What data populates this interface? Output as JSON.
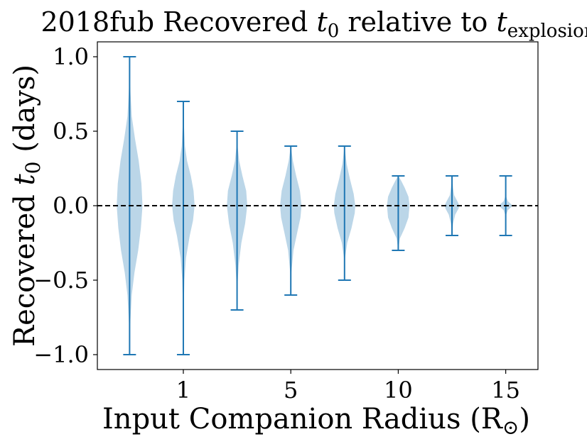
{
  "chart_data": {
    "type": "violin",
    "title": {
      "prefix": "2018fub Recovered ",
      "var": "t",
      "var_sub": "0",
      "middle": " relative to ",
      "var2": "t",
      "var2_sub": "explosion"
    },
    "xlabel": {
      "main": "Input Companion Radius (R",
      "sub": "⊙",
      "close": ")"
    },
    "ylabel": {
      "prefix": "Recovered ",
      "var": "t",
      "var_sub": "0",
      "suffix": "  (days)"
    },
    "ylim": [
      -1.1,
      1.1
    ],
    "yticks": [
      {
        "value": 1.0,
        "label": "1.0"
      },
      {
        "value": 0.5,
        "label": "0.5"
      },
      {
        "value": 0.0,
        "label": "0.0"
      },
      {
        "value": -0.5,
        "label": "−0.5"
      },
      {
        "value": -1.0,
        "label": "−1.0"
      }
    ],
    "xlim": [
      0.4,
      8.6
    ],
    "xticks": [
      {
        "pos": 2,
        "label": "1"
      },
      {
        "pos": 4,
        "label": "5"
      },
      {
        "pos": 6,
        "label": "10"
      },
      {
        "pos": 8,
        "label": "15"
      }
    ],
    "reference_line": {
      "y": 0.0,
      "style": "dashed",
      "color": "#000000"
    },
    "colors": {
      "body": "#1f77b4",
      "body_alpha": 0.3,
      "lines": "#1f77b4"
    },
    "violins": [
      {
        "pos": 1,
        "min": -1.0,
        "max": 1.0,
        "profile": [
          [
            -1.0,
            0.0
          ],
          [
            -0.8,
            0.01
          ],
          [
            -0.6,
            0.04
          ],
          [
            -0.45,
            0.09
          ],
          [
            -0.3,
            0.16
          ],
          [
            -0.15,
            0.21
          ],
          [
            0.0,
            0.24
          ],
          [
            0.15,
            0.22
          ],
          [
            0.3,
            0.17
          ],
          [
            0.45,
            0.1
          ],
          [
            0.6,
            0.04
          ],
          [
            0.8,
            0.01
          ],
          [
            1.0,
            0.0
          ]
        ]
      },
      {
        "pos": 2,
        "min": -1.0,
        "max": 0.7,
        "profile": [
          [
            -1.0,
            0.0
          ],
          [
            -0.7,
            0.005
          ],
          [
            -0.5,
            0.02
          ],
          [
            -0.35,
            0.05
          ],
          [
            -0.2,
            0.12
          ],
          [
            -0.1,
            0.18
          ],
          [
            0.0,
            0.21
          ],
          [
            0.1,
            0.19
          ],
          [
            0.2,
            0.14
          ],
          [
            0.3,
            0.07
          ],
          [
            0.4,
            0.03
          ],
          [
            0.55,
            0.01
          ],
          [
            0.7,
            0.0
          ]
        ]
      },
      {
        "pos": 3,
        "min": -0.7,
        "max": 0.5,
        "profile": [
          [
            -0.7,
            0.0
          ],
          [
            -0.55,
            0.005
          ],
          [
            -0.4,
            0.03
          ],
          [
            -0.25,
            0.08
          ],
          [
            -0.12,
            0.15
          ],
          [
            0.0,
            0.19
          ],
          [
            0.1,
            0.17
          ],
          [
            0.2,
            0.1
          ],
          [
            0.3,
            0.04
          ],
          [
            0.4,
            0.01
          ],
          [
            0.5,
            0.0
          ]
        ]
      },
      {
        "pos": 4,
        "min": -0.6,
        "max": 0.4,
        "profile": [
          [
            -0.6,
            0.0
          ],
          [
            -0.45,
            0.01
          ],
          [
            -0.3,
            0.05
          ],
          [
            -0.18,
            0.12
          ],
          [
            -0.08,
            0.18
          ],
          [
            0.0,
            0.2
          ],
          [
            0.1,
            0.17
          ],
          [
            0.2,
            0.1
          ],
          [
            0.3,
            0.04
          ],
          [
            0.4,
            0.0
          ]
        ]
      },
      {
        "pos": 5,
        "min": -0.5,
        "max": 0.4,
        "profile": [
          [
            -0.5,
            0.0
          ],
          [
            -0.35,
            0.01
          ],
          [
            -0.25,
            0.05
          ],
          [
            -0.15,
            0.13
          ],
          [
            -0.05,
            0.19
          ],
          [
            0.0,
            0.2
          ],
          [
            0.08,
            0.17
          ],
          [
            0.18,
            0.1
          ],
          [
            0.28,
            0.04
          ],
          [
            0.4,
            0.0
          ]
        ]
      },
      {
        "pos": 6,
        "min": -0.3,
        "max": 0.2,
        "profile": [
          [
            -0.3,
            0.0
          ],
          [
            -0.22,
            0.03
          ],
          [
            -0.15,
            0.12
          ],
          [
            -0.08,
            0.19
          ],
          [
            0.0,
            0.21
          ],
          [
            0.06,
            0.19
          ],
          [
            0.12,
            0.12
          ],
          [
            0.17,
            0.05
          ],
          [
            0.2,
            0.0
          ]
        ]
      },
      {
        "pos": 7,
        "min": -0.2,
        "max": 0.2,
        "profile": [
          [
            -0.2,
            0.0
          ],
          [
            -0.12,
            0.02
          ],
          [
            -0.06,
            0.06
          ],
          [
            -0.02,
            0.12
          ],
          [
            0.0,
            0.14
          ],
          [
            0.03,
            0.1
          ],
          [
            0.07,
            0.04
          ],
          [
            0.12,
            0.02
          ],
          [
            0.2,
            0.0
          ]
        ]
      },
      {
        "pos": 8,
        "min": -0.2,
        "max": 0.2,
        "profile": [
          [
            -0.2,
            0.0
          ],
          [
            -0.06,
            0.01
          ],
          [
            -0.03,
            0.04
          ],
          [
            -0.01,
            0.1
          ],
          [
            0.0,
            0.12
          ],
          [
            0.01,
            0.1
          ],
          [
            0.03,
            0.04
          ],
          [
            0.06,
            0.01
          ],
          [
            0.2,
            0.0
          ]
        ]
      }
    ]
  }
}
